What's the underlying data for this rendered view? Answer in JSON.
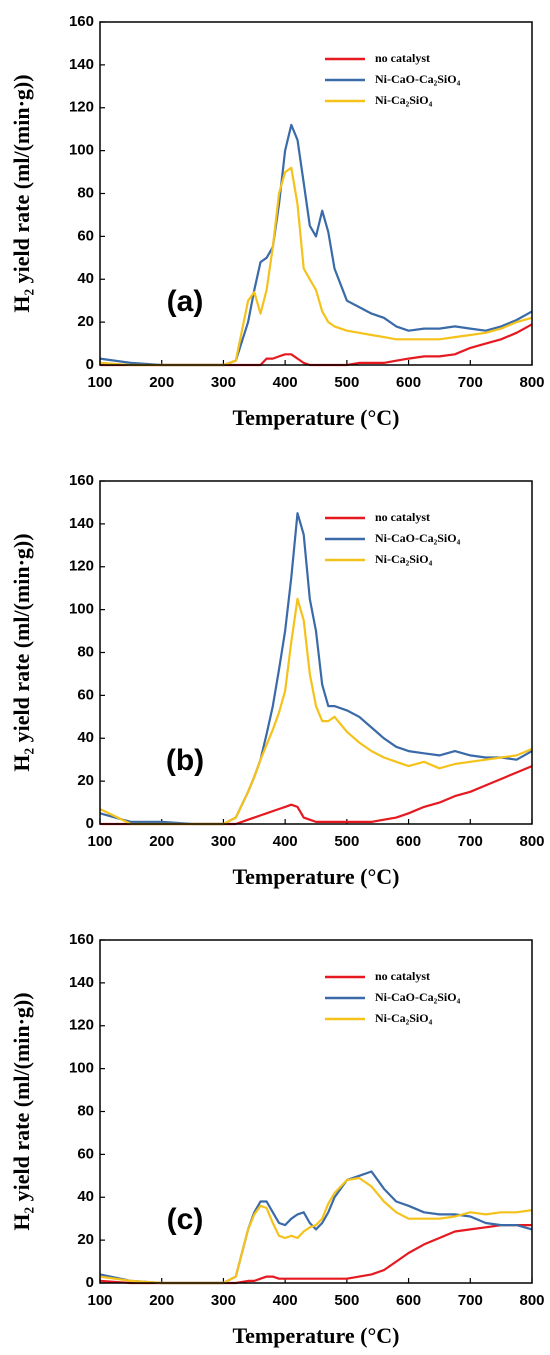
{
  "chart_data": [
    {
      "type": "line",
      "annotation": "(a)",
      "x_label": "Temperature (°C)",
      "y_label": "H₂ yield rate (ml/(min·g))",
      "xlim": [
        100,
        800
      ],
      "ylim": [
        0,
        160
      ],
      "xticks": [
        100,
        200,
        300,
        400,
        500,
        600,
        700,
        800
      ],
      "yticks": [
        0,
        20,
        40,
        60,
        80,
        100,
        120,
        140,
        160
      ],
      "legend": "upper right",
      "x": [
        100,
        150,
        200,
        250,
        300,
        320,
        340,
        350,
        360,
        370,
        380,
        390,
        400,
        410,
        420,
        430,
        440,
        450,
        460,
        470,
        480,
        500,
        520,
        540,
        560,
        580,
        600,
        625,
        650,
        675,
        700,
        725,
        750,
        775,
        800
      ],
      "series": [
        {
          "name": "no catalyst",
          "color": "#e5191f",
          "values": [
            0,
            0,
            0,
            0,
            0,
            0,
            0,
            0,
            0,
            3,
            3,
            4,
            5,
            5,
            3,
            1,
            0,
            0,
            0,
            0,
            0,
            0,
            1,
            1,
            1,
            2,
            3,
            4,
            4,
            5,
            8,
            10,
            12,
            15,
            19
          ]
        },
        {
          "name": "Ni-CaO-Ca₂SiO₄",
          "color": "#3a6aa8",
          "values": [
            3,
            1,
            0,
            0,
            0,
            2,
            20,
            35,
            48,
            50,
            55,
            75,
            100,
            112,
            105,
            85,
            65,
            60,
            72,
            62,
            45,
            30,
            27,
            24,
            22,
            18,
            16,
            17,
            17,
            18,
            17,
            16,
            18,
            21,
            25
          ]
        },
        {
          "name": "Ni-Ca₂SiO₄",
          "color": "#f5c21b",
          "values": [
            1,
            0,
            0,
            0,
            0,
            2,
            30,
            34,
            24,
            35,
            55,
            80,
            90,
            92,
            75,
            45,
            40,
            35,
            25,
            20,
            18,
            16,
            15,
            14,
            13,
            12,
            12,
            12,
            12,
            13,
            14,
            15,
            17,
            20,
            22
          ]
        }
      ]
    },
    {
      "type": "line",
      "annotation": "(b)",
      "x_label": "Temperature (°C)",
      "y_label": "H₂ yield rate (ml/(min·g))",
      "xlim": [
        100,
        800
      ],
      "ylim": [
        0,
        160
      ],
      "xticks": [
        100,
        200,
        300,
        400,
        500,
        600,
        700,
        800
      ],
      "yticks": [
        0,
        20,
        40,
        60,
        80,
        100,
        120,
        140,
        160
      ],
      "legend": "upper right",
      "x": [
        100,
        150,
        200,
        250,
        300,
        320,
        340,
        350,
        360,
        370,
        380,
        390,
        400,
        410,
        420,
        430,
        440,
        450,
        460,
        470,
        480,
        500,
        520,
        540,
        560,
        580,
        600,
        625,
        650,
        675,
        700,
        725,
        750,
        775,
        800
      ],
      "series": [
        {
          "name": "no catalyst",
          "color": "#e5191f",
          "values": [
            0,
            0,
            0,
            0,
            0,
            0,
            2,
            3,
            4,
            5,
            6,
            7,
            8,
            9,
            8,
            3,
            2,
            1,
            1,
            1,
            1,
            1,
            1,
            1,
            2,
            3,
            5,
            8,
            10,
            13,
            15,
            18,
            21,
            24,
            27
          ]
        },
        {
          "name": "Ni-CaO-Ca₂SiO₄",
          "color": "#3a6aa8",
          "values": [
            5,
            1,
            1,
            0,
            0,
            3,
            15,
            22,
            30,
            42,
            55,
            72,
            90,
            115,
            145,
            135,
            105,
            90,
            65,
            55,
            55,
            53,
            50,
            45,
            40,
            36,
            34,
            33,
            32,
            34,
            32,
            31,
            31,
            30,
            34
          ]
        },
        {
          "name": "Ni-Ca₂SiO₄",
          "color": "#f5c21b",
          "values": [
            7,
            0,
            0,
            0,
            0,
            3,
            15,
            22,
            30,
            37,
            44,
            52,
            62,
            85,
            105,
            95,
            70,
            55,
            48,
            48,
            50,
            43,
            38,
            34,
            31,
            29,
            27,
            29,
            26,
            28,
            29,
            30,
            31,
            32,
            35
          ]
        }
      ]
    },
    {
      "type": "line",
      "annotation": "(c)",
      "x_label": "Temperature (°C)",
      "y_label": "H₂ yield rate (ml/(min·g))",
      "xlim": [
        100,
        800
      ],
      "ylim": [
        0,
        160
      ],
      "xticks": [
        100,
        200,
        300,
        400,
        500,
        600,
        700,
        800
      ],
      "yticks": [
        0,
        20,
        40,
        60,
        80,
        100,
        120,
        140,
        160
      ],
      "legend": "upper right",
      "x": [
        100,
        150,
        200,
        250,
        300,
        320,
        340,
        350,
        360,
        370,
        380,
        390,
        400,
        410,
        420,
        430,
        440,
        450,
        460,
        470,
        480,
        500,
        520,
        540,
        560,
        580,
        600,
        625,
        650,
        675,
        700,
        725,
        750,
        775,
        800
      ],
      "series": [
        {
          "name": "no catalyst",
          "color": "#e5191f",
          "values": [
            1,
            0,
            0,
            0,
            0,
            0,
            1,
            1,
            2,
            3,
            3,
            2,
            2,
            2,
            2,
            2,
            2,
            2,
            2,
            2,
            2,
            2,
            3,
            4,
            6,
            10,
            14,
            18,
            21,
            24,
            25,
            26,
            27,
            27,
            27
          ]
        },
        {
          "name": "Ni-CaO-Ca₂SiO₄",
          "color": "#3a6aa8",
          "values": [
            4,
            1,
            0,
            0,
            0,
            3,
            25,
            33,
            38,
            38,
            33,
            28,
            27,
            30,
            32,
            33,
            28,
            25,
            28,
            33,
            40,
            48,
            50,
            52,
            44,
            38,
            36,
            33,
            32,
            32,
            31,
            28,
            27,
            27,
            25
          ]
        },
        {
          "name": "Ni-Ca₂SiO₄",
          "color": "#f5c21b",
          "values": [
            3,
            1,
            0,
            0,
            0,
            3,
            25,
            32,
            36,
            35,
            28,
            22,
            21,
            22,
            21,
            24,
            26,
            27,
            30,
            37,
            42,
            48,
            49,
            45,
            38,
            33,
            30,
            30,
            30,
            31,
            33,
            32,
            33,
            33,
            34
          ]
        }
      ]
    }
  ]
}
